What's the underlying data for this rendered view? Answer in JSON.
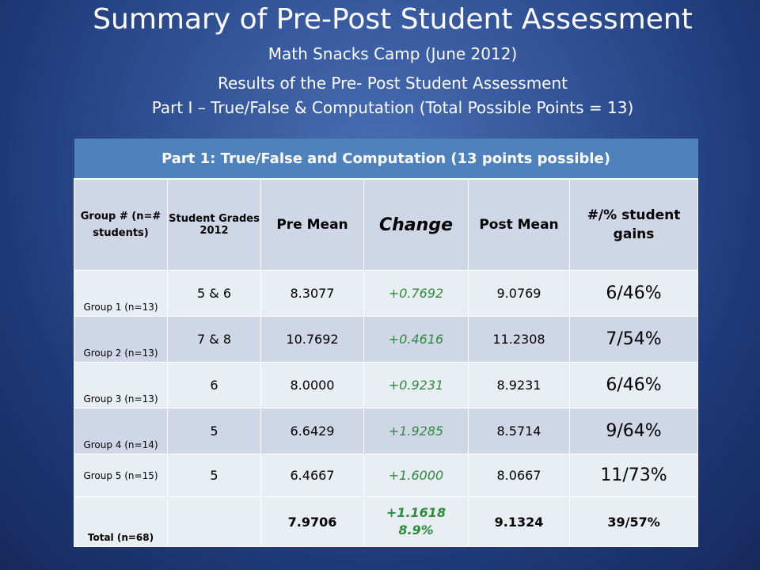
{
  "slide": {
    "title": "Summary of Pre-Post Student Assessment",
    "subtitle1": "Math Snacks Camp (June 2012)",
    "subtitle2": "Results of the Pre- Post Student Assessment",
    "subtitle3": "Part I – True/False & Computation (Total Possible Points = 13)"
  },
  "table": {
    "caption": "Part 1: True/False and Computation (13 points possible)",
    "headers": {
      "group": "Group # (n=# students)",
      "grades": "Student Grades 2012",
      "pre": "Pre Mean",
      "change": "Change",
      "post": "Post Mean",
      "gains": "#/% student gains"
    },
    "rows": [
      {
        "group": "Group 1 (n=13)",
        "grades": "5 & 6",
        "pre": "8.3077",
        "change": "+0.7692",
        "post": "9.0769",
        "gains": "6/46%"
      },
      {
        "group": "Group 2 (n=13)",
        "grades": "7 & 8",
        "pre": "10.7692",
        "change": "+0.4616",
        "post": "11.2308",
        "gains": "7/54%"
      },
      {
        "group": "Group 3 (n=13)",
        "grades": "6",
        "pre": "8.0000",
        "change": "+0.9231",
        "post": "8.9231",
        "gains": "6/46%"
      },
      {
        "group": "Group 4 (n=14)",
        "grades": "5",
        "pre": "6.6429",
        "change": "+1.9285",
        "post": "8.5714",
        "gains": "9/64%"
      },
      {
        "group": "Group 5 (n=15)",
        "grades": "5",
        "pre": "6.4667",
        "change": "+1.6000",
        "post": "8.0667",
        "gains": "11/73%"
      }
    ],
    "total": {
      "group": "Total (n=68)",
      "grades": "",
      "pre": "7.9706",
      "change": "+1.1618",
      "change_pct": "8.9%",
      "post": "9.1324",
      "gains": "39/57%"
    }
  }
}
